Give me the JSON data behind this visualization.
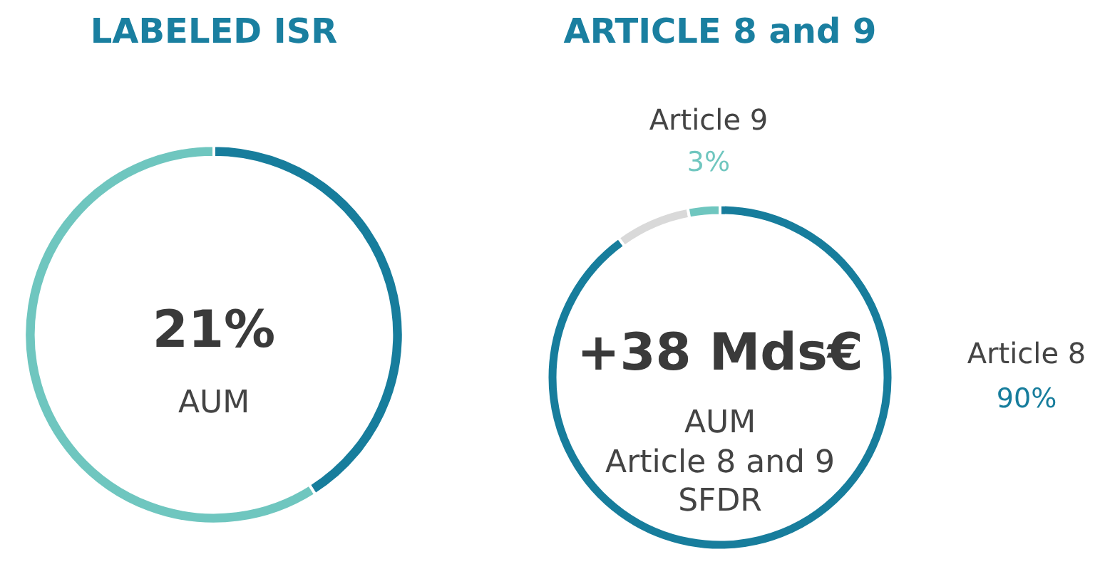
{
  "chart_data": [
    {
      "type": "donut",
      "title": "LABELED ISR",
      "categories": [
        null,
        null
      ],
      "values": [
        41,
        59
      ],
      "colors": [
        "#177d9c",
        "#6fc6bf"
      ],
      "annotations": [
        "21%",
        "AUM"
      ]
    },
    {
      "type": "donut",
      "title": "ARTICLE 8 and 9",
      "categories": [
        "Article 8",
        null,
        "Article 9"
      ],
      "values": [
        90,
        7,
        3
      ],
      "colors": [
        "#177d9c",
        "#d9d9d9",
        "#6fc6bf"
      ],
      "value_labels": [
        "90%",
        null,
        "3%"
      ],
      "annotations": [
        "+38 Mds€",
        "AUM",
        "Article 8 and 9",
        "SFDR"
      ]
    }
  ]
}
